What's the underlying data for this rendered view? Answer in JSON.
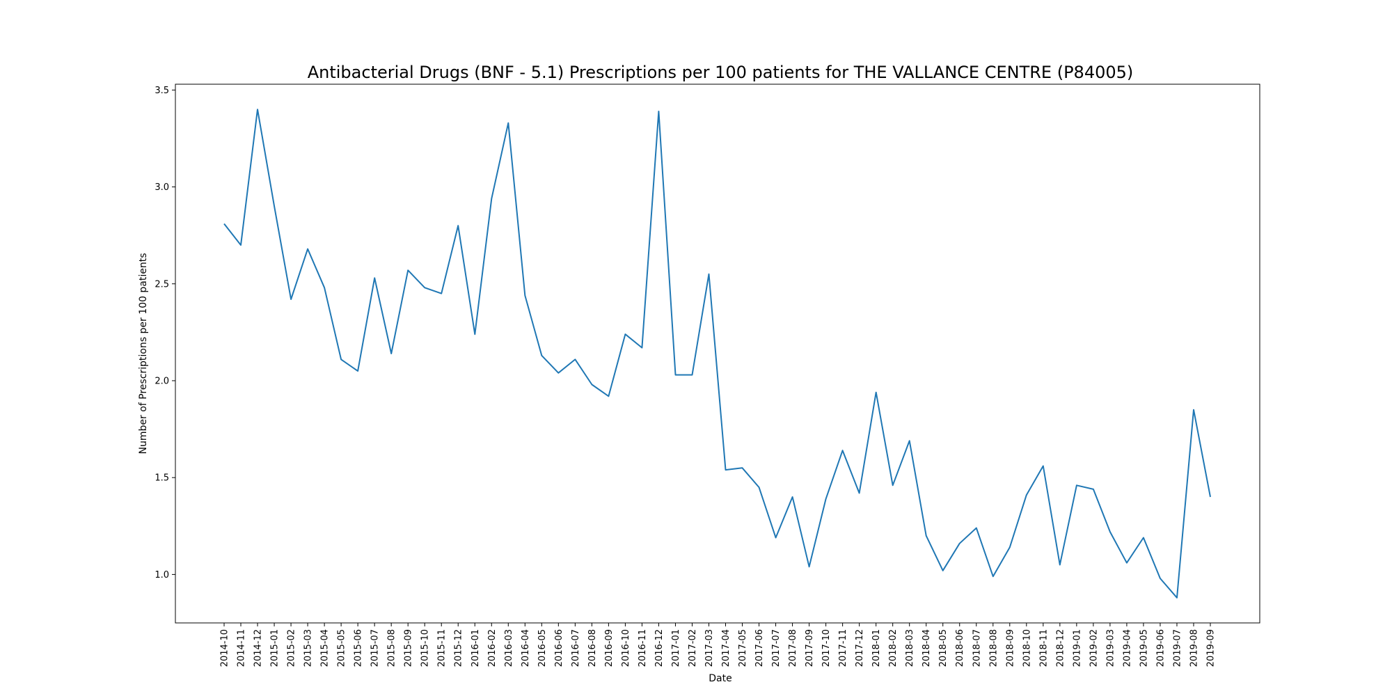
{
  "chart_data": {
    "type": "line",
    "title": "Antibacterial Drugs (BNF - 5.1) Prescriptions per 100 patients for THE VALLANCE CENTRE (P84005)",
    "xlabel": "Date",
    "ylabel": "Number of Prescriptions per 100 patients",
    "ylim": [
      0.75,
      3.53
    ],
    "yticks": [
      "1.0",
      "1.5",
      "2.0",
      "2.5",
      "3.0",
      "3.5"
    ],
    "grid": false,
    "line_color": "#1f77b4",
    "x": [
      "2014-10",
      "2014-11",
      "2014-12",
      "2015-01",
      "2015-02",
      "2015-03",
      "2015-04",
      "2015-05",
      "2015-06",
      "2015-07",
      "2015-08",
      "2015-09",
      "2015-10",
      "2015-11",
      "2015-12",
      "2016-01",
      "2016-02",
      "2016-03",
      "2016-04",
      "2016-05",
      "2016-06",
      "2016-07",
      "2016-08",
      "2016-09",
      "2016-10",
      "2016-11",
      "2016-12",
      "2017-01",
      "2017-02",
      "2017-03",
      "2017-04",
      "2017-05",
      "2017-06",
      "2017-07",
      "2017-08",
      "2017-09",
      "2017-10",
      "2017-11",
      "2017-12",
      "2018-01",
      "2018-02",
      "2018-03",
      "2018-04",
      "2018-05",
      "2018-06",
      "2018-07",
      "2018-08",
      "2018-09",
      "2018-10",
      "2018-11",
      "2018-12",
      "2019-01",
      "2019-02",
      "2019-03",
      "2019-04",
      "2019-05",
      "2019-06",
      "2019-07",
      "2019-08",
      "2019-09"
    ],
    "values": [
      2.81,
      2.7,
      3.4,
      2.9,
      2.42,
      2.68,
      2.48,
      2.11,
      2.05,
      2.53,
      2.14,
      2.57,
      2.48,
      2.45,
      2.8,
      2.24,
      2.94,
      3.33,
      2.44,
      2.13,
      2.04,
      2.11,
      1.98,
      1.92,
      2.24,
      2.17,
      3.39,
      2.03,
      2.03,
      2.55,
      1.54,
      1.55,
      1.45,
      1.19,
      1.4,
      1.04,
      1.39,
      1.64,
      1.42,
      1.94,
      1.46,
      1.69,
      1.2,
      1.02,
      1.16,
      1.24,
      0.99,
      1.14,
      1.41,
      1.56,
      1.05,
      1.46,
      1.44,
      1.22,
      1.06,
      1.19,
      0.98,
      0.88,
      1.85,
      1.4
    ]
  }
}
